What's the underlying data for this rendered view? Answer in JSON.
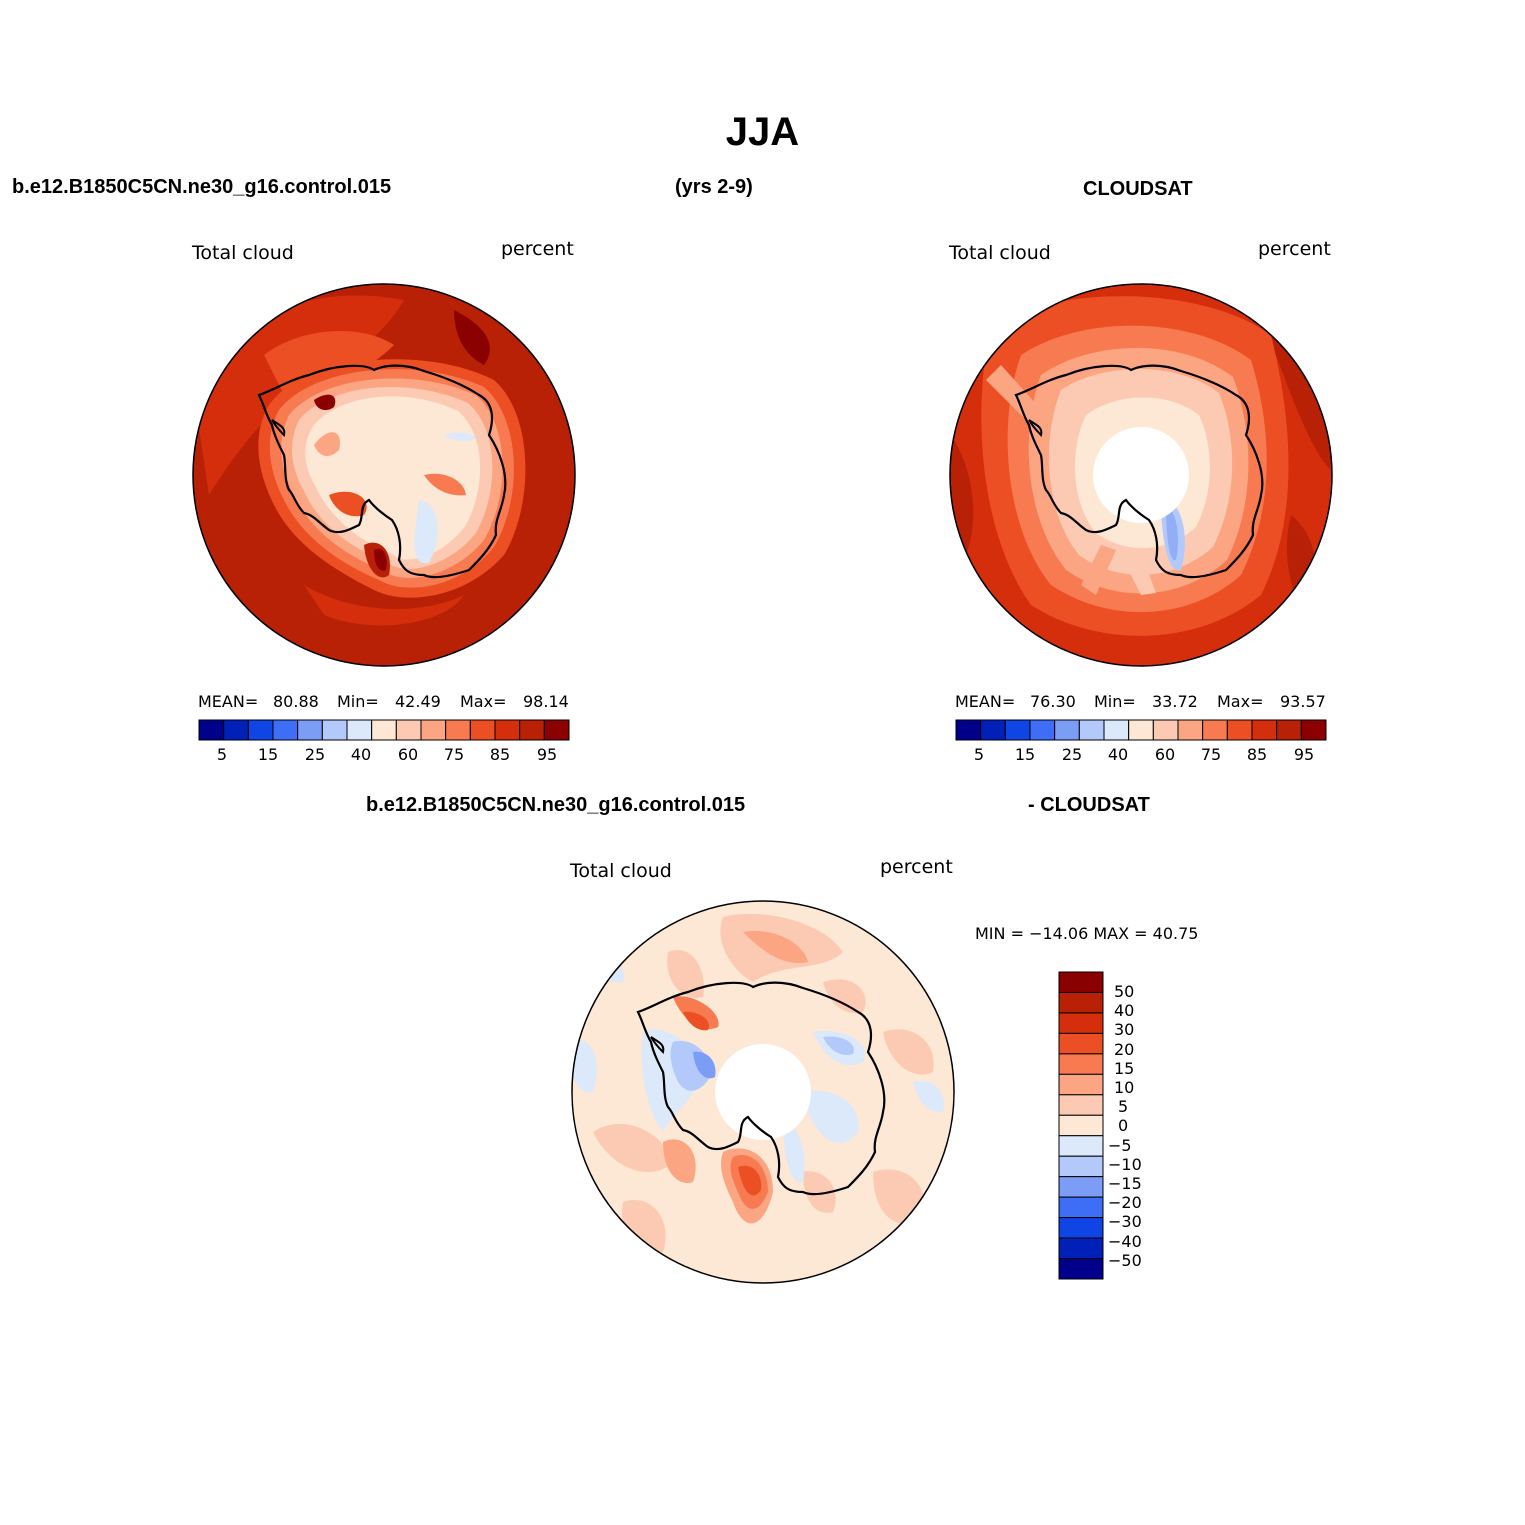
{
  "figure": {
    "title": "JJA",
    "header_left": "b.e12.B1850C5CN.ne30_g16.control.015",
    "header_center": "(yrs 2-9)",
    "header_right": "CLOUDSAT",
    "diff_header_left": "b.e12.B1850C5CN.ne30_g16.control.015",
    "diff_header_right": "- CLOUDSAT"
  },
  "panels": {
    "model": {
      "left_label": "Total cloud",
      "right_label": "percent",
      "mean_label": "MEAN=",
      "mean": "80.88",
      "min_label": "Min=",
      "min": "42.49",
      "max_label": "Max=",
      "max": "98.14"
    },
    "obs": {
      "left_label": "Total cloud",
      "right_label": "percent",
      "mean_label": "MEAN=",
      "mean": "76.30",
      "min_label": "Min=",
      "min": "33.72",
      "max_label": "Max=",
      "max": "93.57"
    },
    "diff": {
      "left_label": "Total cloud",
      "right_label": "percent",
      "minmax_text": "MIN = −14.06 MAX =  40.75"
    }
  },
  "colorbar_abs": {
    "colors": [
      "#00008b",
      "#0020b8",
      "#0f45e5",
      "#3d6ef5",
      "#7c9df5",
      "#b3c9fb",
      "#dbe9fb",
      "#fde7d5",
      "#fccab2",
      "#fca583",
      "#f77a50",
      "#ec4f23",
      "#d52e0c",
      "#b82105",
      "#8b0000"
    ],
    "tick_labels": [
      "5",
      "15",
      "25",
      "40",
      "60",
      "75",
      "85",
      "95"
    ]
  },
  "colorbar_diff": {
    "colors_top_to_bottom": [
      "#8b0000",
      "#b82105",
      "#d52e0c",
      "#ec4f23",
      "#f77a50",
      "#fca583",
      "#fccab2",
      "#fde7d5",
      "#dbe9fb",
      "#b3c9fb",
      "#7c9df5",
      "#3d6ef5",
      "#0f45e5",
      "#0020b8",
      "#00008b"
    ],
    "tick_labels_top_to_bottom": [
      "50",
      "40",
      "30",
      "20",
      "15",
      "10",
      "5",
      "0",
      "−5",
      "−10",
      "−15",
      "−20",
      "−30",
      "−40",
      "−50"
    ]
  }
}
